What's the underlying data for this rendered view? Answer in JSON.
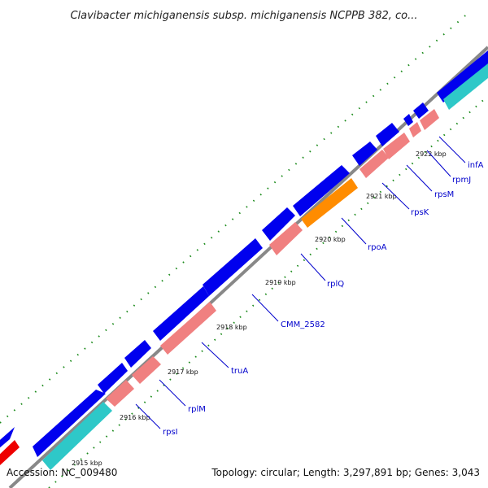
{
  "title": "Clavibacter michiganensis subsp. michiganensis NCPPB 382, co...",
  "footer": {
    "accession": "Accession: NC_009480",
    "summary": "Topology: circular; Length: 3,297,891 bp; Genes: 3,043"
  },
  "colors": {
    "backbone": "#888888",
    "forward": "#0000ee",
    "reverse_rna": "#f08080",
    "reverse_cyan": "#2ec8c8",
    "highlight": "#ff8c00",
    "red": "#ee0000",
    "ticks": "#1a8a1a",
    "label": "#0000cc"
  },
  "ticks": [
    "2915 kbp",
    "2916 kbp",
    "2917 kbp",
    "2918 kbp",
    "2919 kbp",
    "2920 kbp",
    "2921 kbp",
    "2922 kbp"
  ],
  "gene_labels": [
    "rpsI",
    "rplM",
    "truA",
    "CMM_2582",
    "rplQ",
    "rpoA",
    "rpsK",
    "rpsM",
    "rpmJ",
    "infA"
  ]
}
